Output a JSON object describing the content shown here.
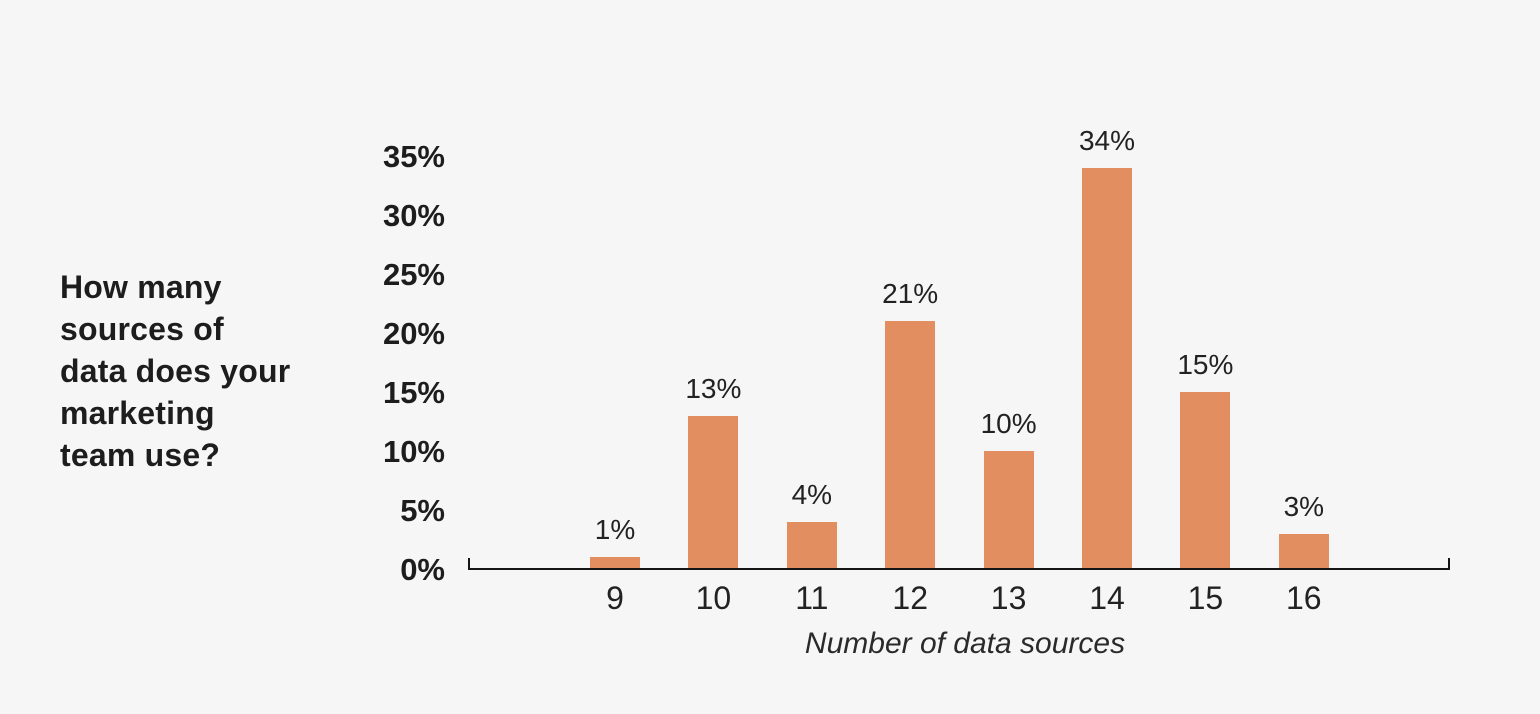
{
  "colors": {
    "background": "#f6f6f6",
    "bar": "#e28e61",
    "text_dark": "#1d1d1d",
    "axis": "#151515"
  },
  "question": {
    "text": "How many sources of data does your marketing team use?",
    "lines": [
      "How many",
      "sources of",
      "data does your",
      "marketing",
      "team use?"
    ]
  },
  "chart_data": {
    "type": "bar",
    "title": "How many sources of data does your marketing team use?",
    "categories": [
      "9",
      "10",
      "11",
      "12",
      "13",
      "14",
      "15",
      "16"
    ],
    "values": [
      1,
      13,
      4,
      21,
      10,
      34,
      15,
      3
    ],
    "bar_labels": [
      "1%",
      "13%",
      "4%",
      "21%",
      "10%",
      "34%",
      "15%",
      "3%"
    ],
    "xlabel": "Number of data sources",
    "ylabel": "",
    "ylim": [
      0,
      35
    ],
    "ytick_values": [
      0,
      5,
      10,
      15,
      20,
      25,
      30,
      35
    ],
    "ytick_labels": [
      "0%",
      "5%",
      "10%",
      "15%",
      "20%",
      "25%",
      "30%",
      "35%"
    ],
    "grid": false,
    "legend": "none",
    "bar_color": "#e28e61"
  }
}
